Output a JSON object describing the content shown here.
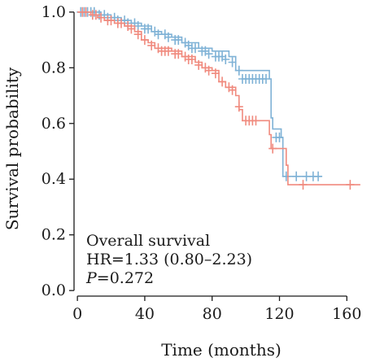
{
  "chart_data": {
    "type": "line",
    "title": "",
    "xlabel": "Time (months)",
    "ylabel": "Survival probability",
    "xlim": [
      -2,
      170
    ],
    "ylim": [
      -0.02,
      1.02
    ],
    "xticks": [
      0,
      40,
      80,
      120,
      160
    ],
    "yticks": [
      0.0,
      0.2,
      0.4,
      0.6,
      0.8,
      1.0
    ],
    "xtick_labels": [
      "0",
      "40",
      "80",
      "120",
      "160"
    ],
    "ytick_labels": [
      "0.0",
      "0.2",
      "0.4",
      "0.6",
      "0.8",
      "1.0"
    ],
    "grid": false,
    "annotations": {
      "line1": "Overall survival",
      "line2": "HR=1.33 (0.80–2.23)",
      "p_label": "P",
      "p_value": "=0.272"
    },
    "series": [
      {
        "color": "#7FB2D6",
        "steps": [
          [
            0,
            1.0
          ],
          [
            10,
            1.0
          ],
          [
            14,
            0.99
          ],
          [
            20,
            0.98
          ],
          [
            26,
            0.97
          ],
          [
            32,
            0.96
          ],
          [
            38,
            0.95
          ],
          [
            44,
            0.93
          ],
          [
            50,
            0.92
          ],
          [
            56,
            0.91
          ],
          [
            62,
            0.89
          ],
          [
            72,
            0.87
          ],
          [
            80,
            0.86
          ],
          [
            90,
            0.84
          ],
          [
            94,
            0.79
          ],
          [
            114,
            0.76
          ],
          [
            115,
            0.62
          ],
          [
            116,
            0.58
          ],
          [
            121,
            0.55
          ],
          [
            122,
            0.41
          ],
          [
            145,
            0.41
          ]
        ],
        "censored": [
          [
            2,
            1.0
          ],
          [
            4,
            1.0
          ],
          [
            6,
            1.0
          ],
          [
            8,
            1.0
          ],
          [
            10,
            1.0
          ],
          [
            13,
            0.99
          ],
          [
            16,
            0.99
          ],
          [
            18,
            0.98
          ],
          [
            22,
            0.98
          ],
          [
            24,
            0.97
          ],
          [
            28,
            0.97
          ],
          [
            30,
            0.96
          ],
          [
            34,
            0.96
          ],
          [
            36,
            0.95
          ],
          [
            40,
            0.94
          ],
          [
            42,
            0.94
          ],
          [
            46,
            0.93
          ],
          [
            48,
            0.92
          ],
          [
            52,
            0.92
          ],
          [
            54,
            0.91
          ],
          [
            58,
            0.9
          ],
          [
            60,
            0.9
          ],
          [
            64,
            0.89
          ],
          [
            66,
            0.88
          ],
          [
            68,
            0.87
          ],
          [
            70,
            0.87
          ],
          [
            74,
            0.86
          ],
          [
            76,
            0.86
          ],
          [
            78,
            0.85
          ],
          [
            82,
            0.84
          ],
          [
            84,
            0.84
          ],
          [
            86,
            0.84
          ],
          [
            88,
            0.83
          ],
          [
            92,
            0.82
          ],
          [
            96,
            0.79
          ],
          [
            98,
            0.76
          ],
          [
            100,
            0.76
          ],
          [
            102,
            0.76
          ],
          [
            104,
            0.76
          ],
          [
            106,
            0.76
          ],
          [
            108,
            0.76
          ],
          [
            110,
            0.76
          ],
          [
            112,
            0.76
          ],
          [
            118,
            0.55
          ],
          [
            120,
            0.55
          ],
          [
            124,
            0.41
          ],
          [
            130,
            0.41
          ],
          [
            136,
            0.41
          ],
          [
            140,
            0.41
          ],
          [
            143,
            0.41
          ]
        ]
      },
      {
        "color": "#F08A7E",
        "steps": [
          [
            0,
            1.0
          ],
          [
            8,
            0.99
          ],
          [
            12,
            0.98
          ],
          [
            16,
            0.97
          ],
          [
            22,
            0.96
          ],
          [
            28,
            0.95
          ],
          [
            34,
            0.93
          ],
          [
            38,
            0.9
          ],
          [
            42,
            0.89
          ],
          [
            46,
            0.87
          ],
          [
            56,
            0.86
          ],
          [
            62,
            0.84
          ],
          [
            70,
            0.82
          ],
          [
            74,
            0.8
          ],
          [
            80,
            0.79
          ],
          [
            84,
            0.75
          ],
          [
            88,
            0.73
          ],
          [
            94,
            0.7
          ],
          [
            96,
            0.65
          ],
          [
            98,
            0.61
          ],
          [
            108,
            0.61
          ],
          [
            114,
            0.56
          ],
          [
            115,
            0.51
          ],
          [
            118,
            0.51
          ],
          [
            124,
            0.45
          ],
          [
            125,
            0.38
          ],
          [
            168,
            0.38
          ]
        ],
        "censored": [
          [
            3,
            1.0
          ],
          [
            5,
            1.0
          ],
          [
            9,
            0.99
          ],
          [
            11,
            0.99
          ],
          [
            14,
            0.98
          ],
          [
            18,
            0.97
          ],
          [
            20,
            0.97
          ],
          [
            24,
            0.96
          ],
          [
            26,
            0.96
          ],
          [
            30,
            0.95
          ],
          [
            32,
            0.94
          ],
          [
            36,
            0.92
          ],
          [
            40,
            0.9
          ],
          [
            44,
            0.88
          ],
          [
            48,
            0.87
          ],
          [
            50,
            0.86
          ],
          [
            52,
            0.86
          ],
          [
            54,
            0.86
          ],
          [
            58,
            0.85
          ],
          [
            60,
            0.85
          ],
          [
            64,
            0.84
          ],
          [
            66,
            0.83
          ],
          [
            68,
            0.83
          ],
          [
            72,
            0.81
          ],
          [
            76,
            0.8
          ],
          [
            78,
            0.79
          ],
          [
            82,
            0.78
          ],
          [
            86,
            0.75
          ],
          [
            90,
            0.73
          ],
          [
            92,
            0.72
          ],
          [
            96,
            0.66
          ],
          [
            100,
            0.61
          ],
          [
            102,
            0.61
          ],
          [
            104,
            0.61
          ],
          [
            106,
            0.61
          ],
          [
            116,
            0.51
          ],
          [
            134,
            0.38
          ],
          [
            162,
            0.38
          ]
        ]
      }
    ]
  }
}
